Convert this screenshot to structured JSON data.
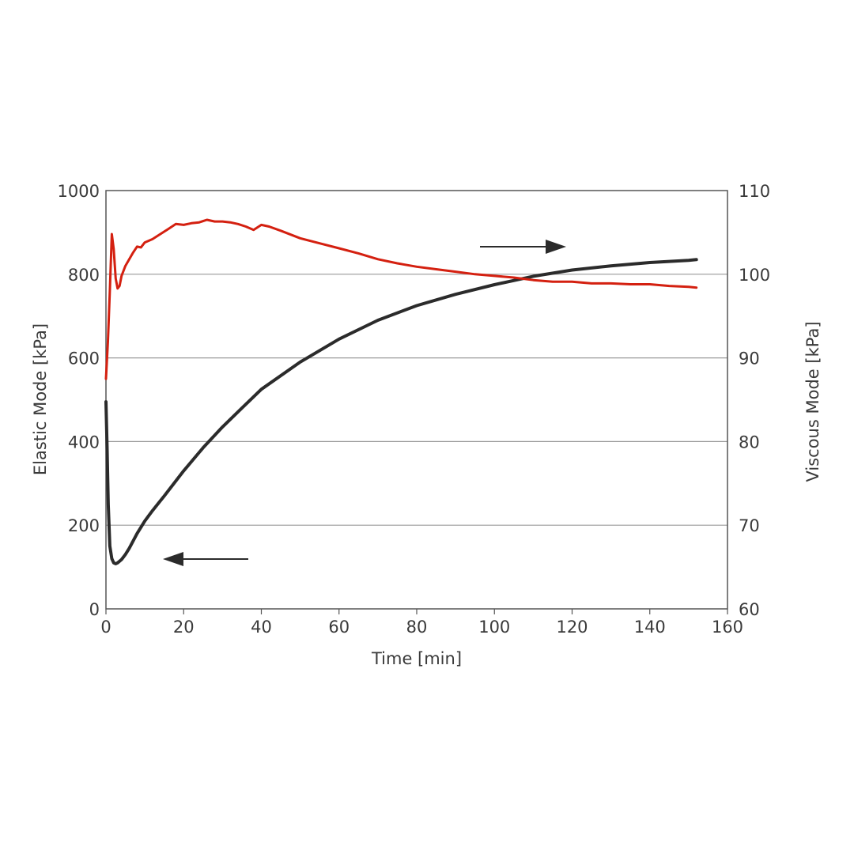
{
  "chart_data": {
    "type": "line",
    "title": "",
    "xlabel": "Time [min]",
    "ylabel_left": "Elastic Mode [kPa]",
    "ylabel_right": "Viscous Mode [kPa]",
    "xlim": [
      0,
      160
    ],
    "ylim_left": [
      0,
      1000
    ],
    "ylim_right": [
      60,
      110
    ],
    "x_ticks": [
      "0",
      "20",
      "40",
      "60",
      "80",
      "100",
      "120",
      "140",
      "160"
    ],
    "y_left_ticks": [
      "0",
      "200",
      "400",
      "600",
      "800",
      "1000"
    ],
    "y_right_ticks": [
      "60",
      "70",
      "80",
      "90",
      "100",
      "110"
    ],
    "grid": "horizontal",
    "series": [
      {
        "axis": "left",
        "color": "#2b2b2b",
        "x": [
          0,
          0.3,
          0.6,
          1,
          1.5,
          2,
          2.5,
          3,
          4,
          5,
          6,
          8,
          10,
          12,
          15,
          20,
          25,
          30,
          35,
          40,
          50,
          60,
          70,
          80,
          90,
          100,
          110,
          120,
          130,
          140,
          150,
          152
        ],
        "y": [
          495,
          380,
          250,
          150,
          120,
          110,
          108,
          110,
          118,
          130,
          145,
          180,
          210,
          235,
          270,
          330,
          385,
          435,
          480,
          525,
          590,
          645,
          690,
          725,
          752,
          775,
          795,
          810,
          820,
          828,
          833,
          835
        ]
      },
      {
        "axis": "right",
        "color": "#d42010",
        "x": [
          0,
          0.5,
          1,
          1.5,
          2,
          2.5,
          3,
          3.5,
          4,
          5,
          6,
          7,
          8,
          9,
          10,
          12,
          14,
          16,
          18,
          20,
          22,
          24,
          26,
          28,
          30,
          32,
          34,
          36,
          38,
          40,
          42,
          45,
          50,
          55,
          60,
          65,
          70,
          75,
          80,
          85,
          90,
          95,
          100,
          105,
          110,
          115,
          120,
          125,
          130,
          135,
          140,
          145,
          150,
          152
        ],
        "y": [
          87.5,
          92,
          98,
          104.8,
          103,
          99.5,
          98.3,
          98.6,
          99.8,
          101,
          101.8,
          102.6,
          103.3,
          103.2,
          103.8,
          104.2,
          104.8,
          105.4,
          106,
          105.9,
          106.1,
          106.2,
          106.5,
          106.3,
          106.3,
          106.2,
          106.0,
          105.7,
          105.3,
          105.9,
          105.7,
          105.2,
          104.3,
          103.7,
          103.1,
          102.5,
          101.8,
          101.3,
          100.9,
          100.6,
          100.3,
          100.0,
          99.8,
          99.6,
          99.3,
          99.1,
          99.1,
          98.9,
          98.9,
          98.8,
          98.8,
          98.6,
          98.5,
          98.4
        ]
      }
    ],
    "annotations": [
      {
        "type": "arrow",
        "direction": "left",
        "refers_to": "left-axis"
      },
      {
        "type": "arrow",
        "direction": "right",
        "refers_to": "right-axis"
      }
    ]
  }
}
